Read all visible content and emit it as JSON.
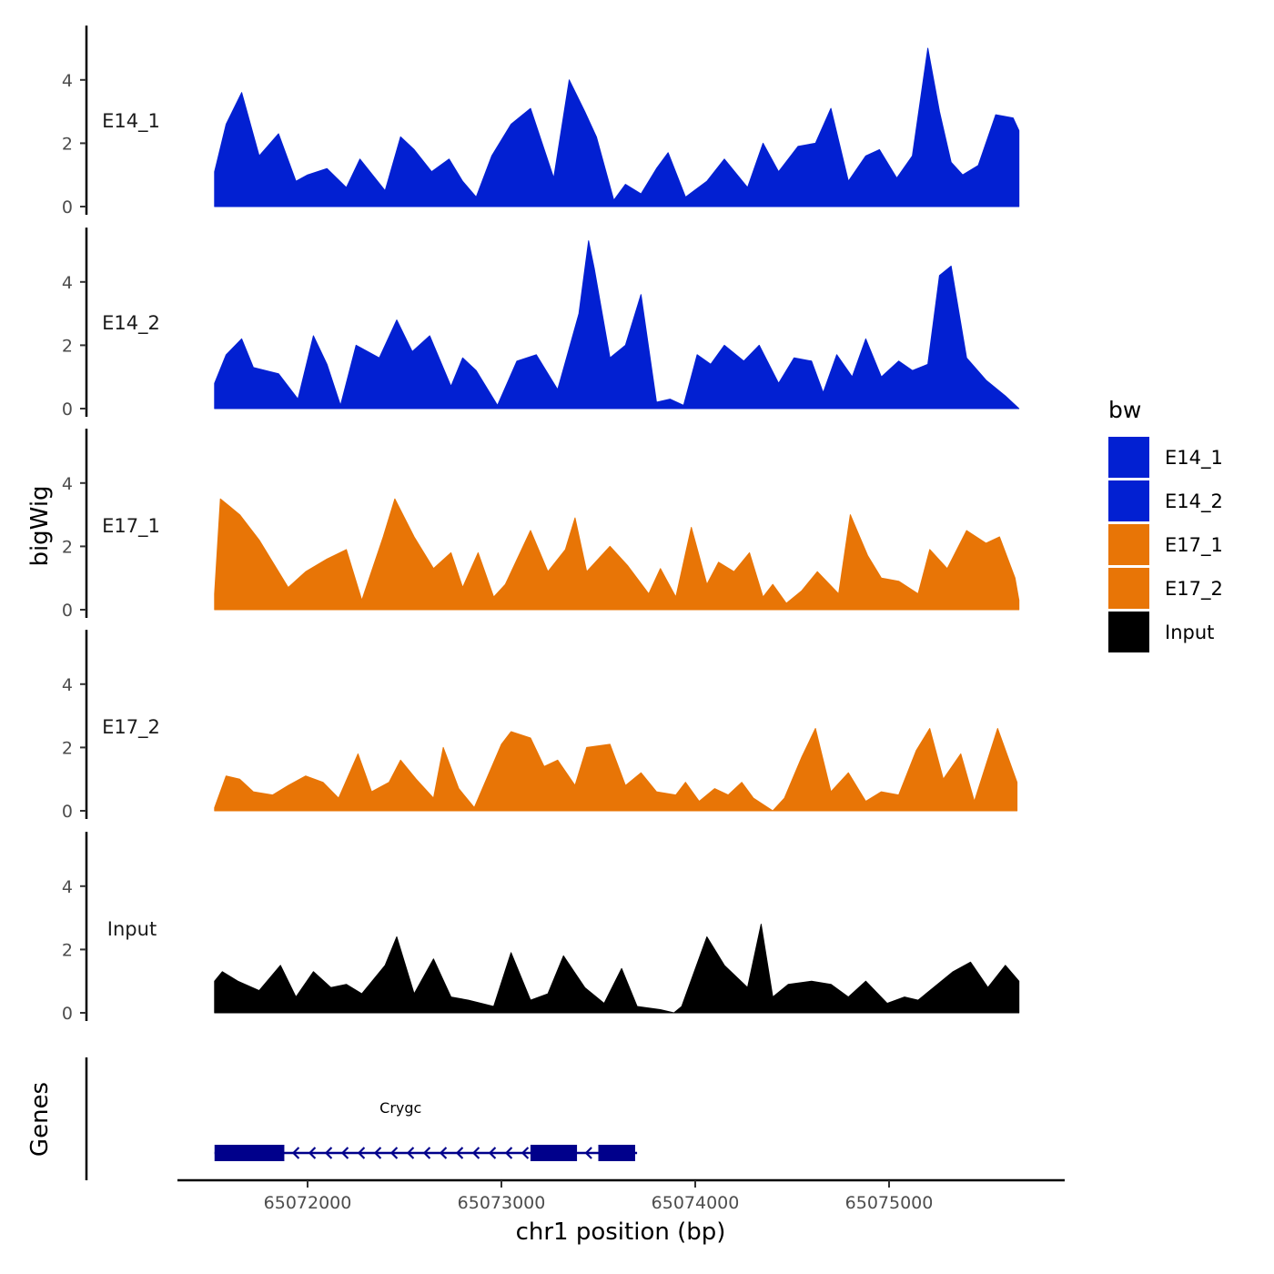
{
  "chart_data": {
    "type": "area",
    "ylabel": "bigWig",
    "xlabel": "chr1 position (bp)",
    "genes_label": "Genes",
    "ylim": [
      0,
      5.6
    ],
    "y_ticks": [
      0,
      2,
      4
    ],
    "xlim": [
      65071200,
      65076000
    ],
    "x_ticks": [
      65072000,
      65073000,
      65074000,
      65075000
    ],
    "x_tick_labels": [
      "65072000",
      "65073000",
      "65074000",
      "65075000"
    ],
    "legend": {
      "title": "bw",
      "position": "right",
      "entries": [
        {
          "label": "E14_1",
          "color": "#0220d2"
        },
        {
          "label": "E14_2",
          "color": "#0220d2"
        },
        {
          "label": "E17_1",
          "color": "#e87506"
        },
        {
          "label": "E17_2",
          "color": "#e87506"
        },
        {
          "label": "Input",
          "color": "#000000"
        }
      ]
    },
    "series": [
      {
        "name": "E14_1",
        "color": "#0220d2",
        "x": [
          65071520,
          65071580,
          65071660,
          65071750,
          65071850,
          65071940,
          65072000,
          65072100,
          65072200,
          65072270,
          65072400,
          65072480,
          65072550,
          65072640,
          65072730,
          65072800,
          65072870,
          65072950,
          65073050,
          65073150,
          65073270,
          65073350,
          65073430,
          65073490,
          65073580,
          65073640,
          65073720,
          65073800,
          65073860,
          65073950,
          65074060,
          65074150,
          65074270,
          65074350,
          65074430,
          65074530,
          65074620,
          65074700,
          65074790,
          65074880,
          65074950,
          65075040,
          65075120,
          65075200,
          65075260,
          65075320,
          65075380,
          65075460,
          65075550,
          65075640,
          65075670
        ],
        "y": [
          1.1,
          2.6,
          3.6,
          1.6,
          2.3,
          0.8,
          1.0,
          1.2,
          0.6,
          1.5,
          0.5,
          2.2,
          1.8,
          1.1,
          1.5,
          0.8,
          0.3,
          1.6,
          2.6,
          3.1,
          0.9,
          4.0,
          3.0,
          2.2,
          0.2,
          0.7,
          0.4,
          1.2,
          1.7,
          0.3,
          0.8,
          1.5,
          0.6,
          2.0,
          1.1,
          1.9,
          2.0,
          3.1,
          0.8,
          1.6,
          1.8,
          0.9,
          1.6,
          5.0,
          3.0,
          1.4,
          1.0,
          1.3,
          2.9,
          2.8,
          2.4
        ]
      },
      {
        "name": "E14_2",
        "color": "#0220d2",
        "x": [
          65071520,
          65071580,
          65071660,
          65071720,
          65071850,
          65071950,
          65072030,
          65072100,
          65072170,
          65072250,
          65072370,
          65072460,
          65072540,
          65072630,
          65072740,
          65072800,
          65072870,
          65072980,
          65073080,
          65073180,
          65073290,
          65073400,
          65073450,
          65073480,
          65073560,
          65073640,
          65073720,
          65073800,
          65073870,
          65073940,
          65074010,
          65074080,
          65074150,
          65074250,
          65074330,
          65074430,
          65074510,
          65074600,
          65074660,
          65074730,
          65074810,
          65074880,
          65074960,
          65075050,
          65075120,
          65075200,
          65075260,
          65075320,
          65075400,
          65075500,
          65075600,
          65075670
        ],
        "y": [
          0.8,
          1.7,
          2.2,
          1.3,
          1.1,
          0.3,
          2.3,
          1.4,
          0.1,
          2.0,
          1.6,
          2.8,
          1.8,
          2.3,
          0.7,
          1.6,
          1.2,
          0.1,
          1.5,
          1.7,
          0.6,
          3.0,
          5.3,
          4.4,
          1.6,
          2.0,
          3.6,
          0.2,
          0.3,
          0.1,
          1.7,
          1.4,
          2.0,
          1.5,
          2.0,
          0.8,
          1.6,
          1.5,
          0.5,
          1.7,
          1.0,
          2.2,
          1.0,
          1.5,
          1.2,
          1.4,
          4.2,
          4.5,
          1.6,
          0.9,
          0.4,
          0.0
        ]
      },
      {
        "name": "E17_1",
        "color": "#e87506",
        "x": [
          65071520,
          65071550,
          65071650,
          65071750,
          65071900,
          65071990,
          65072100,
          65072200,
          65072280,
          65072390,
          65072450,
          65072550,
          65072650,
          65072740,
          65072800,
          65072880,
          65072960,
          65073020,
          65073150,
          65073240,
          65073330,
          65073380,
          65073440,
          65073560,
          65073650,
          65073760,
          65073820,
          65073900,
          65073980,
          65074060,
          65074120,
          65074200,
          65074280,
          65074350,
          65074400,
          65074470,
          65074550,
          65074630,
          65074740,
          65074800,
          65074890,
          65074960,
          65075050,
          65075150,
          65075210,
          65075300,
          65075400,
          65075500,
          65075570,
          65075650,
          65075670
        ],
        "y": [
          0.5,
          3.5,
          3.0,
          2.2,
          0.7,
          1.2,
          1.6,
          1.9,
          0.3,
          2.3,
          3.5,
          2.3,
          1.3,
          1.8,
          0.7,
          1.8,
          0.4,
          0.8,
          2.5,
          1.2,
          1.9,
          2.9,
          1.2,
          2.0,
          1.4,
          0.5,
          1.3,
          0.4,
          2.6,
          0.8,
          1.5,
          1.2,
          1.8,
          0.4,
          0.8,
          0.2,
          0.6,
          1.2,
          0.5,
          3.0,
          1.7,
          1.0,
          0.9,
          0.5,
          1.9,
          1.3,
          2.5,
          2.1,
          2.3,
          1.0,
          0.3
        ]
      },
      {
        "name": "E17_2",
        "color": "#e87506",
        "x": [
          65071520,
          65071580,
          65071650,
          65071720,
          65071820,
          65071900,
          65071990,
          65072080,
          65072160,
          65072260,
          65072330,
          65072420,
          65072480,
          65072560,
          65072650,
          65072700,
          65072780,
          65072860,
          65073000,
          65073050,
          65073150,
          65073220,
          65073290,
          65073380,
          65073440,
          65073560,
          65073640,
          65073720,
          65073800,
          65073900,
          65073950,
          65074020,
          65074100,
          65074170,
          65074240,
          65074300,
          65074400,
          65074460,
          65074550,
          65074620,
          65074700,
          65074790,
          65074880,
          65074960,
          65075050,
          65075140,
          65075210,
          65075280,
          65075370,
          65075440,
          65075560,
          65075660
        ],
        "y": [
          0.1,
          1.1,
          1.0,
          0.6,
          0.5,
          0.8,
          1.1,
          0.9,
          0.4,
          1.8,
          0.6,
          0.9,
          1.6,
          1.0,
          0.4,
          2.0,
          0.7,
          0.1,
          2.1,
          2.5,
          2.3,
          1.4,
          1.6,
          0.8,
          2.0,
          2.1,
          0.8,
          1.2,
          0.6,
          0.5,
          0.9,
          0.3,
          0.7,
          0.5,
          0.9,
          0.4,
          0.0,
          0.4,
          1.7,
          2.6,
          0.6,
          1.2,
          0.3,
          0.6,
          0.5,
          1.9,
          2.6,
          1.0,
          1.8,
          0.3,
          2.6,
          0.9
        ]
      },
      {
        "name": "Input",
        "color": "#000000",
        "x": [
          65071520,
          65071560,
          65071640,
          65071750,
          65071860,
          65071940,
          65072030,
          65072120,
          65072200,
          65072280,
          65072400,
          65072460,
          65072550,
          65072650,
          65072740,
          65072830,
          65072960,
          65073050,
          65073150,
          65073240,
          65073320,
          65073430,
          65073530,
          65073620,
          65073700,
          65073820,
          65073890,
          65073930,
          65074060,
          65074150,
          65074270,
          65074340,
          65074400,
          65074480,
          65074600,
          65074700,
          65074790,
          65074880,
          65074990,
          65075080,
          65075150,
          65075230,
          65075330,
          65075420,
          65075510,
          65075600,
          65075670
        ],
        "y": [
          1.0,
          1.3,
          1.0,
          0.7,
          1.5,
          0.5,
          1.3,
          0.8,
          0.9,
          0.6,
          1.5,
          2.4,
          0.6,
          1.7,
          0.5,
          0.4,
          0.2,
          1.9,
          0.4,
          0.6,
          1.8,
          0.8,
          0.3,
          1.4,
          0.2,
          0.1,
          0.0,
          0.2,
          2.4,
          1.5,
          0.8,
          2.8,
          0.5,
          0.9,
          1.0,
          0.9,
          0.5,
          1.0,
          0.3,
          0.5,
          0.4,
          0.8,
          1.3,
          1.6,
          0.8,
          1.5,
          1.0
        ]
      }
    ],
    "genes": [
      {
        "name": "Crygc",
        "start": 65071520,
        "end": 65073700,
        "strand": "-",
        "exons": [
          [
            65071520,
            65071880
          ],
          [
            65073150,
            65073390
          ],
          [
            65073500,
            65073690
          ]
        ]
      }
    ]
  }
}
